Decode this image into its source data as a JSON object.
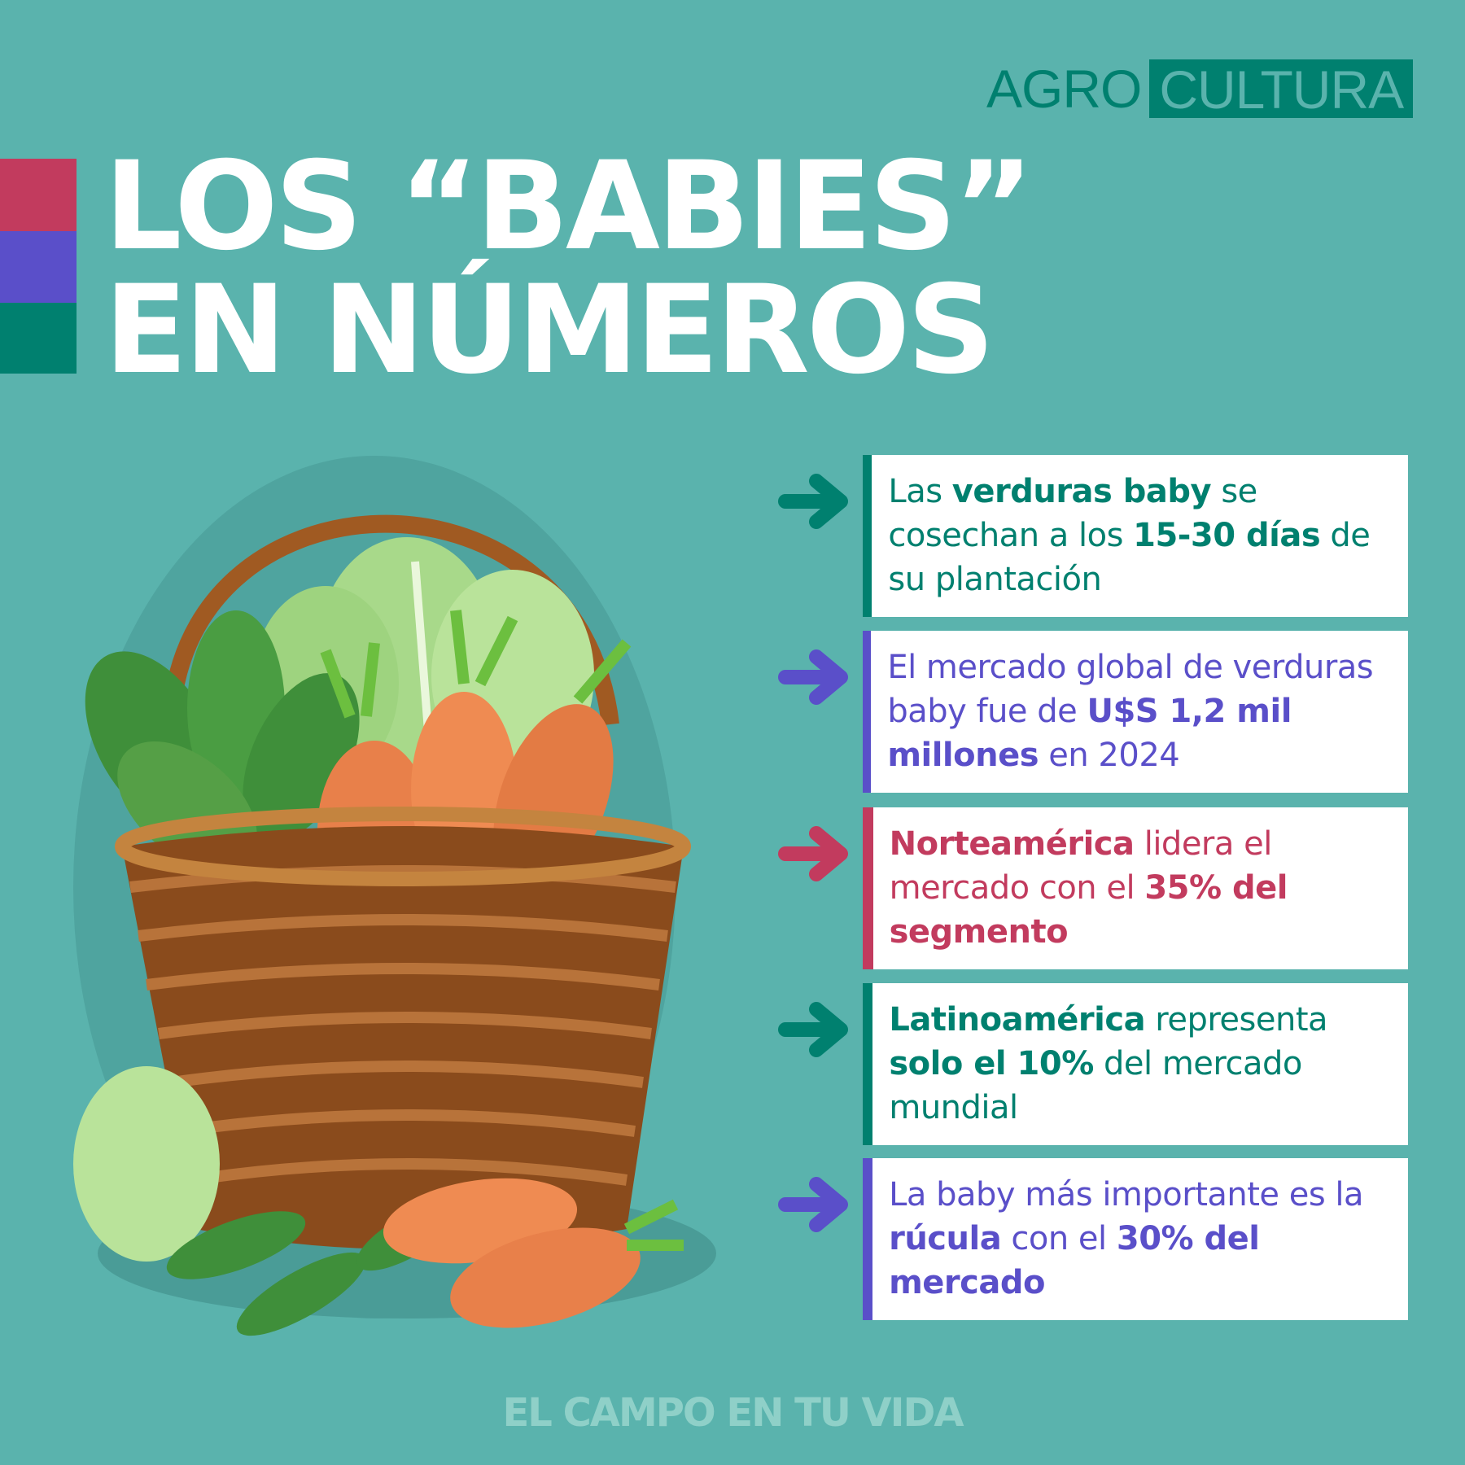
{
  "logo": {
    "part1": "AGRO",
    "part2": "CULTURA"
  },
  "title": {
    "line1": "LOS “BABIES”",
    "line2": "EN NÚMEROS"
  },
  "colors": {
    "background": "#5ab3ad",
    "teal": "#00806f",
    "purple": "#5a4fc9",
    "red": "#c23b5e",
    "footer": "#8fd0c8"
  },
  "facts": [
    {
      "color": "teal",
      "segments": [
        {
          "text": "Las ",
          "bold": false
        },
        {
          "text": "verduras baby",
          "bold": true
        },
        {
          "text": " se cosechan a los ",
          "bold": false
        },
        {
          "text": "15-30 días",
          "bold": true
        },
        {
          "text": " de su plantación",
          "bold": false
        }
      ]
    },
    {
      "color": "purple",
      "segments": [
        {
          "text": "El mercado global de verduras baby fue de ",
          "bold": false
        },
        {
          "text": "U$S 1,2 mil millones",
          "bold": true
        },
        {
          "text": " en 2024",
          "bold": false
        }
      ]
    },
    {
      "color": "red",
      "segments": [
        {
          "text": "Norteamérica",
          "bold": true
        },
        {
          "text": " lidera el mercado con el ",
          "bold": false
        },
        {
          "text": "35% del segmento",
          "bold": true
        }
      ]
    },
    {
      "color": "teal",
      "segments": [
        {
          "text": "Latinoamérica",
          "bold": true
        },
        {
          "text": " representa ",
          "bold": false
        },
        {
          "text": "solo el 10%",
          "bold": true
        },
        {
          "text": " del mercado mundial",
          "bold": false
        }
      ]
    },
    {
      "color": "purple",
      "segments": [
        {
          "text": "La baby más importante es la ",
          "bold": false
        },
        {
          "text": "rúcula",
          "bold": true
        },
        {
          "text": " con el ",
          "bold": false
        },
        {
          "text": "30% del mercado",
          "bold": true
        }
      ]
    }
  ],
  "illustration": "basket-with-vegetables",
  "footer": "EL CAMPO EN TU VIDA"
}
